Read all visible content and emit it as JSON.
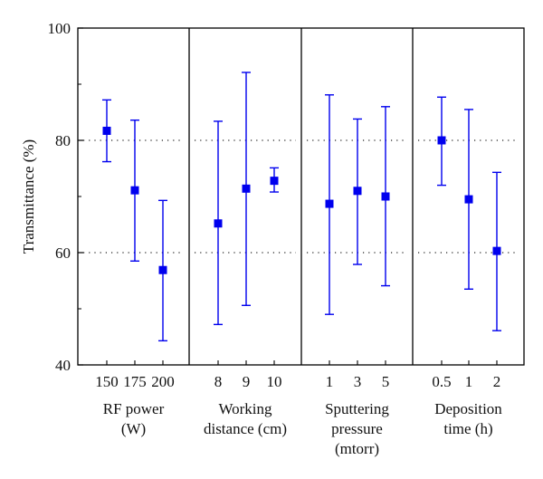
{
  "chart_data": {
    "type": "scatter",
    "subtype": "errorbar",
    "ylabel": "Transmittance (%)",
    "ylim": [
      40,
      100
    ],
    "yticks": [
      40,
      60,
      80,
      100
    ],
    "reference_lines": [
      60,
      80
    ],
    "marker_color": "#0000ee",
    "groups": [
      {
        "label_lines": [
          "RF power",
          "(W)"
        ],
        "categories": [
          "150",
          "175",
          "200"
        ],
        "points": [
          {
            "x": "150",
            "y": 81.7,
            "low": 76.2,
            "high": 87.2
          },
          {
            "x": "175",
            "y": 71.1,
            "low": 58.5,
            "high": 83.6
          },
          {
            "x": "200",
            "y": 56.9,
            "low": 44.3,
            "high": 69.3
          }
        ]
      },
      {
        "label_lines": [
          "Working",
          "distance (cm)"
        ],
        "categories": [
          "8",
          "9",
          "10"
        ],
        "points": [
          {
            "x": "8",
            "y": 65.2,
            "low": 47.2,
            "high": 83.4
          },
          {
            "x": "9",
            "y": 71.4,
            "low": 50.6,
            "high": 92.1
          },
          {
            "x": "10",
            "y": 72.8,
            "low": 70.8,
            "high": 75.1
          }
        ]
      },
      {
        "label_lines": [
          "Sputtering",
          "pressure",
          "(mtorr)"
        ],
        "categories": [
          "1",
          "3",
          "5"
        ],
        "points": [
          {
            "x": "1",
            "y": 68.7,
            "low": 49.0,
            "high": 88.1
          },
          {
            "x": "3",
            "y": 71.0,
            "low": 57.9,
            "high": 83.8
          },
          {
            "x": "5",
            "y": 70.0,
            "low": 54.1,
            "high": 86.0
          }
        ]
      },
      {
        "label_lines": [
          "Deposition",
          "time (h)"
        ],
        "categories": [
          "0.5",
          "1",
          "2"
        ],
        "points": [
          {
            "x": "0.5",
            "y": 80.0,
            "low": 72.0,
            "high": 87.7
          },
          {
            "x": "1",
            "y": 69.5,
            "low": 53.5,
            "high": 85.5
          },
          {
            "x": "2",
            "y": 60.3,
            "low": 46.1,
            "high": 74.3
          }
        ]
      }
    ]
  }
}
